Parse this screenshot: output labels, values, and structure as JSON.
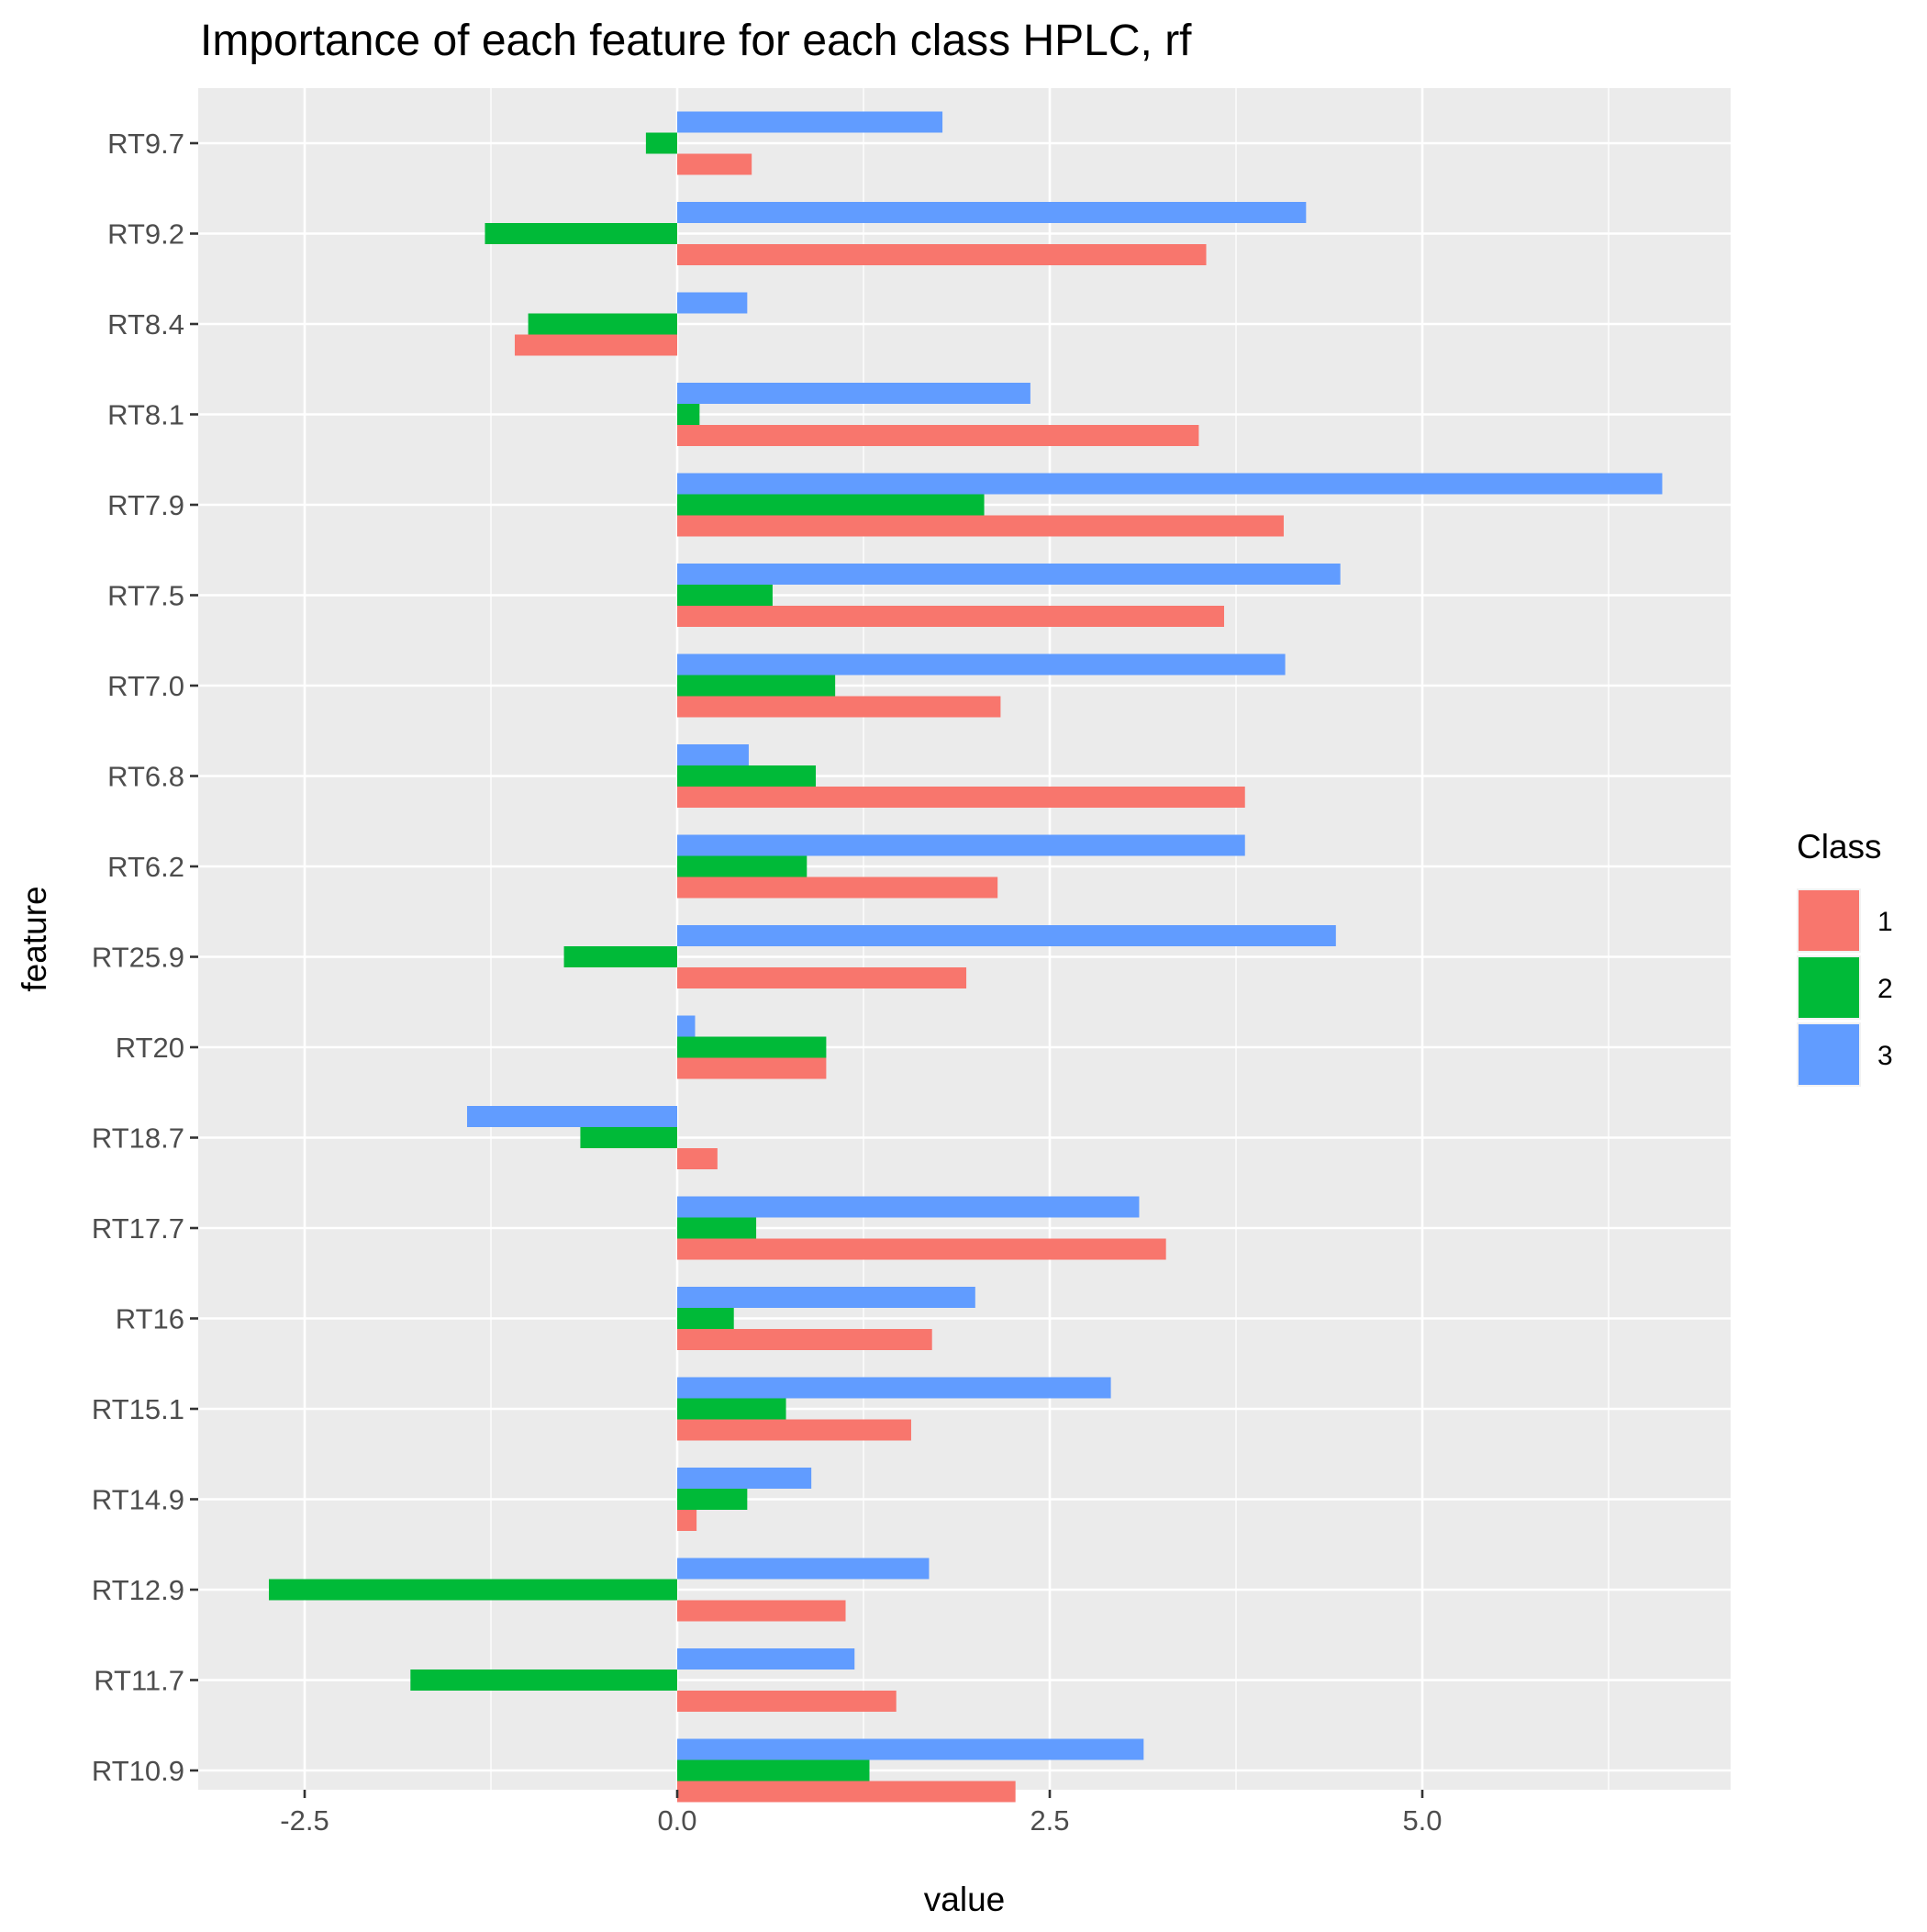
{
  "chart_data": {
    "type": "bar",
    "orientation": "horizontal",
    "title": "Importance of each feature for each class HPLC, rf",
    "xlabel": "value",
    "ylabel": "feature",
    "xlim": [
      -3.2,
      7.1
    ],
    "x_ticks": [
      -2.5,
      0.0,
      2.5,
      5.0
    ],
    "x_tick_labels": [
      "-2.5",
      "0.0",
      "2.5",
      "5.0"
    ],
    "grid": true,
    "legend": {
      "title": "Class",
      "position": "right"
    },
    "categories": [
      "RT9.7",
      "RT9.2",
      "RT8.4",
      "RT8.1",
      "RT7.9",
      "RT7.5",
      "RT7.0",
      "RT6.8",
      "RT6.2",
      "RT25.9",
      "RT20",
      "RT18.7",
      "RT17.7",
      "RT16",
      "RT15.1",
      "RT14.9",
      "RT12.9",
      "RT11.7",
      "RT10.9"
    ],
    "series": [
      {
        "name": "1",
        "color": "#F8766D",
        "values": [
          0.5,
          3.55,
          -1.09,
          3.5,
          4.07,
          3.67,
          2.17,
          3.81,
          2.15,
          1.94,
          1.0,
          0.27,
          3.28,
          1.71,
          1.57,
          0.13,
          1.13,
          1.47,
          2.27
        ]
      },
      {
        "name": "2",
        "color": "#00BA38",
        "values": [
          -0.21,
          -1.29,
          -1.0,
          0.15,
          2.06,
          0.64,
          1.06,
          0.93,
          0.87,
          -0.76,
          1.0,
          -0.65,
          0.53,
          0.38,
          0.73,
          0.47,
          -2.74,
          -1.79,
          1.29
        ]
      },
      {
        "name": "3",
        "color": "#619CFF",
        "values": [
          1.78,
          4.22,
          0.47,
          2.37,
          6.61,
          4.45,
          4.08,
          0.48,
          3.81,
          4.42,
          0.12,
          -1.41,
          3.1,
          2.0,
          2.91,
          0.9,
          1.69,
          1.19,
          3.13
        ]
      }
    ]
  }
}
